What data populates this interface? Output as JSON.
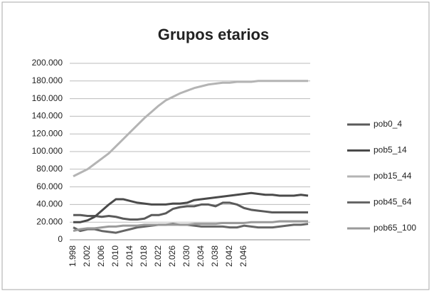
{
  "chart_data": {
    "type": "line",
    "title": "Grupos etarios",
    "categories": [
      "1.998",
      null,
      "2.002",
      null,
      "2.006",
      null,
      "2.010",
      null,
      "2.014",
      null,
      "2.018",
      null,
      "2.022",
      null,
      "2.026",
      null,
      "2.030",
      null,
      "2.034",
      null,
      "2.038",
      null,
      "2.042",
      null,
      "2.046",
      null,
      null,
      null,
      null,
      null,
      null,
      null,
      null,
      null
    ],
    "ylim": [
      0,
      200000
    ],
    "yticks": [
      0,
      {
        "value": 20000,
        "label": "20.000"
      },
      {
        "value": 40000,
        "label": "40.000"
      },
      {
        "value": 60000,
        "label": "60.000"
      },
      {
        "value": 80000,
        "label": "80.000"
      },
      {
        "value": 100000,
        "label": "100.000"
      },
      {
        "value": 120000,
        "label": "120.000"
      },
      {
        "value": 140000,
        "label": "140.000"
      },
      {
        "value": 160000,
        "label": "160.000"
      },
      {
        "value": 180000,
        "label": "180.000"
      },
      {
        "value": 200000,
        "label": "200.000"
      }
    ],
    "grid": true,
    "legend": "right",
    "series": [
      {
        "name": "pob0_4",
        "color": "#5a5a5a",
        "values": [
          28000,
          28000,
          27000,
          27000,
          26000,
          27000,
          26000,
          24000,
          23000,
          23000,
          24000,
          28000,
          28000,
          30000,
          35000,
          37000,
          38000,
          38000,
          40000,
          40000,
          38000,
          42000,
          42000,
          40000,
          36000,
          34000,
          33000,
          32000,
          31000,
          31000,
          31000,
          31000,
          31000,
          31000
        ]
      },
      {
        "name": "pob5_14",
        "color": "#4a4a4a",
        "values": [
          20000,
          20000,
          22000,
          26000,
          33000,
          40000,
          46000,
          46000,
          44000,
          42000,
          41000,
          40000,
          40000,
          40000,
          41000,
          41000,
          42000,
          45000,
          46000,
          47000,
          48000,
          49000,
          50000,
          51000,
          52000,
          53000,
          52000,
          51000,
          51000,
          50000,
          50000,
          50000,
          51000,
          50000
        ]
      },
      {
        "name": "pob15_44",
        "color": "#b4b4b4",
        "values": [
          72000,
          76000,
          80000,
          86000,
          92000,
          98000,
          106000,
          114000,
          122000,
          130000,
          138000,
          145000,
          152000,
          158000,
          162000,
          166000,
          169000,
          172000,
          174000,
          176000,
          177000,
          178000,
          178000,
          179000,
          179000,
          179000,
          180000,
          180000,
          180000,
          180000,
          180000,
          180000,
          180000,
          180000
        ]
      },
      {
        "name": "pob45_64",
        "color": "#666666",
        "values": [
          14000,
          10000,
          12000,
          12000,
          10000,
          9000,
          8000,
          10000,
          12000,
          14000,
          15000,
          16000,
          17000,
          17000,
          18000,
          17000,
          17000,
          16000,
          15000,
          15000,
          15000,
          15000,
          14000,
          14000,
          16000,
          15000,
          14000,
          14000,
          14000,
          15000,
          16000,
          17000,
          17000,
          18000
        ]
      },
      {
        "name": "pob65_100",
        "color": "#9a9a9a",
        "values": [
          10000,
          12000,
          13000,
          13000,
          14000,
          15000,
          15000,
          16000,
          16000,
          16000,
          17000,
          17000,
          17000,
          17000,
          17000,
          17000,
          17000,
          18000,
          18000,
          18000,
          18000,
          19000,
          19000,
          19000,
          19000,
          20000,
          20000,
          20000,
          20000,
          21000,
          21000,
          21000,
          21000,
          21000
        ]
      }
    ]
  }
}
